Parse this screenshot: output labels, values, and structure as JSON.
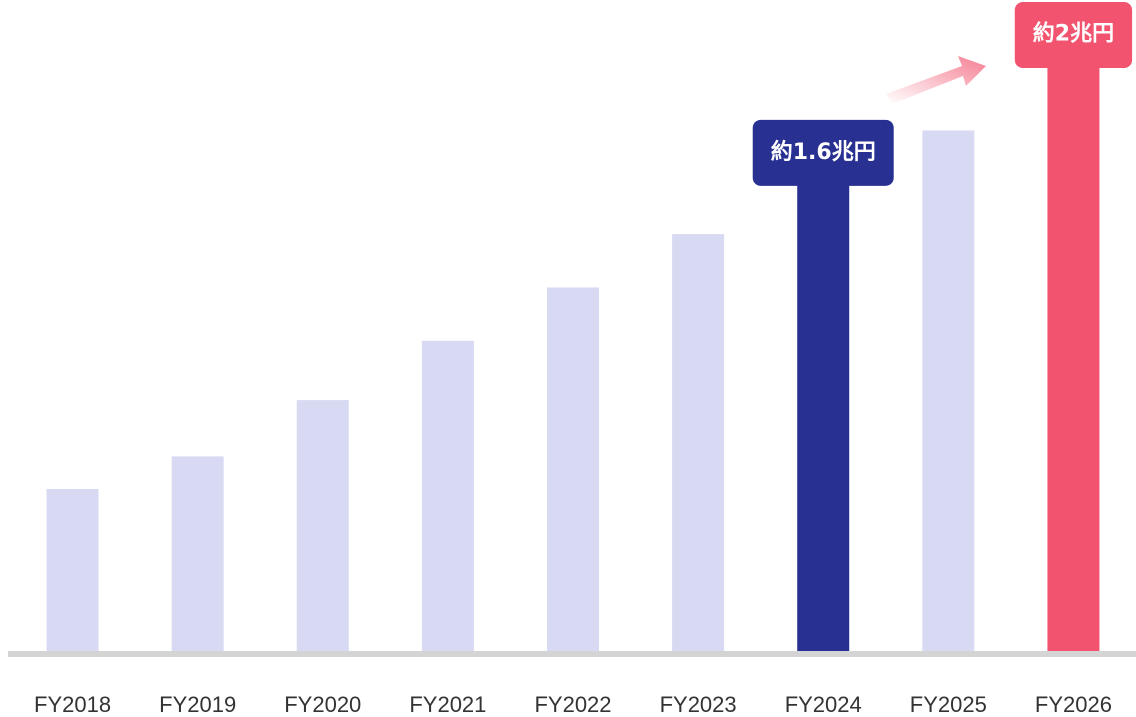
{
  "chart_data": {
    "type": "bar",
    "categories": [
      "FY2018",
      "FY2019",
      "FY2020",
      "FY2021",
      "FY2022",
      "FY2023",
      "FY2024",
      "FY2025",
      "FY2026"
    ],
    "values": [
      0.55,
      0.66,
      0.85,
      1.05,
      1.23,
      1.41,
      1.6,
      1.76,
      2.0
    ],
    "value_labels": [
      null,
      null,
      null,
      null,
      null,
      null,
      "約1.6兆円",
      null,
      "約2兆円"
    ],
    "colors": [
      "#d8d9f3",
      "#d8d9f3",
      "#d8d9f3",
      "#d8d9f3",
      "#d8d9f3",
      "#d8d9f3",
      "#283191",
      "#d8d9f3",
      "#f2546f"
    ],
    "ylim": [
      0,
      2.2
    ]
  }
}
